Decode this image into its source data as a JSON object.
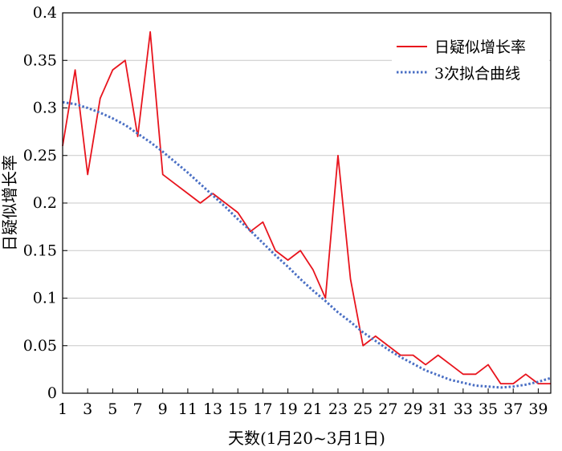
{
  "chart_data": {
    "type": "line",
    "xlabel": "天数(1月20~3月1日)",
    "ylabel": "日疑似增长率",
    "xlim": [
      1,
      40
    ],
    "ylim": [
      0,
      0.4
    ],
    "x_ticks": [
      1,
      3,
      5,
      7,
      9,
      11,
      13,
      15,
      17,
      19,
      21,
      23,
      25,
      27,
      29,
      31,
      33,
      35,
      37,
      39
    ],
    "x_tick_labels": [
      "1",
      "3",
      "5",
      "7",
      "9",
      "11",
      "13",
      "15",
      "17",
      "19",
      "21",
      "23",
      "25",
      "27",
      "29",
      "31",
      "33",
      "35",
      "37",
      "39"
    ],
    "y_ticks": [
      0,
      0.05,
      0.1,
      0.15,
      0.2,
      0.25,
      0.3,
      0.35,
      0.4
    ],
    "y_tick_labels": [
      "0",
      "0.05",
      "0.1",
      "0.15",
      "0.2",
      "0.25",
      "0.3",
      "0.35",
      "0.4"
    ],
    "grid": "horizontal",
    "legend_position": "top-right",
    "x": [
      1,
      2,
      3,
      4,
      5,
      6,
      7,
      8,
      9,
      10,
      11,
      12,
      13,
      14,
      15,
      16,
      17,
      18,
      19,
      20,
      21,
      22,
      23,
      24,
      25,
      26,
      27,
      28,
      29,
      30,
      31,
      32,
      33,
      34,
      35,
      36,
      37,
      38,
      39,
      40
    ],
    "series": [
      {
        "name": "日疑似增长率",
        "style": "solid",
        "color": "#e8141d",
        "values": [
          0.26,
          0.34,
          0.23,
          0.31,
          0.34,
          0.35,
          0.27,
          0.38,
          0.23,
          0.22,
          0.21,
          0.2,
          0.21,
          0.2,
          0.19,
          0.17,
          0.18,
          0.15,
          0.14,
          0.15,
          0.13,
          0.1,
          0.25,
          0.12,
          0.05,
          0.06,
          0.05,
          0.04,
          0.04,
          0.03,
          0.04,
          0.03,
          0.02,
          0.02,
          0.03,
          0.01,
          0.01,
          0.02,
          0.01,
          0.01
        ]
      },
      {
        "name": "3次拟合曲线",
        "style": "dotted",
        "color": "#4a6fc4",
        "values": [
          0.306,
          0.304,
          0.3,
          0.295,
          0.289,
          0.282,
          0.273,
          0.264,
          0.254,
          0.243,
          0.232,
          0.22,
          0.208,
          0.196,
          0.183,
          0.171,
          0.158,
          0.145,
          0.133,
          0.12,
          0.108,
          0.097,
          0.085,
          0.075,
          0.064,
          0.055,
          0.046,
          0.038,
          0.031,
          0.024,
          0.019,
          0.014,
          0.011,
          0.008,
          0.007,
          0.006,
          0.007,
          0.009,
          0.012,
          0.016
        ]
      }
    ]
  }
}
